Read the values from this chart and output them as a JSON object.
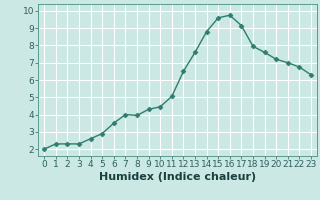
{
  "x": [
    0,
    1,
    2,
    3,
    4,
    5,
    6,
    7,
    8,
    9,
    10,
    11,
    12,
    13,
    14,
    15,
    16,
    17,
    18,
    19,
    20,
    21,
    22,
    23
  ],
  "y": [
    2.0,
    2.3,
    2.3,
    2.3,
    2.6,
    2.9,
    3.5,
    4.0,
    3.95,
    4.3,
    4.45,
    5.05,
    6.5,
    7.6,
    8.8,
    9.6,
    9.75,
    9.15,
    7.95,
    7.6,
    7.2,
    7.0,
    6.75,
    6.3
  ],
  "line_color": "#2e7d6e",
  "marker": "D",
  "marker_size": 2.5,
  "bg_color": "#cce8e4",
  "grid_color": "#ffffff",
  "xlabel": "Humidex (Indice chaleur)",
  "xlabel_fontsize": 8,
  "yticks": [
    2,
    3,
    4,
    5,
    6,
    7,
    8,
    9,
    10
  ],
  "xticks": [
    0,
    1,
    2,
    3,
    4,
    5,
    6,
    7,
    8,
    9,
    10,
    11,
    12,
    13,
    14,
    15,
    16,
    17,
    18,
    19,
    20,
    21,
    22,
    23
  ],
  "ylim": [
    1.6,
    10.4
  ],
  "xlim": [
    -0.5,
    23.5
  ],
  "tick_fontsize": 6.5
}
